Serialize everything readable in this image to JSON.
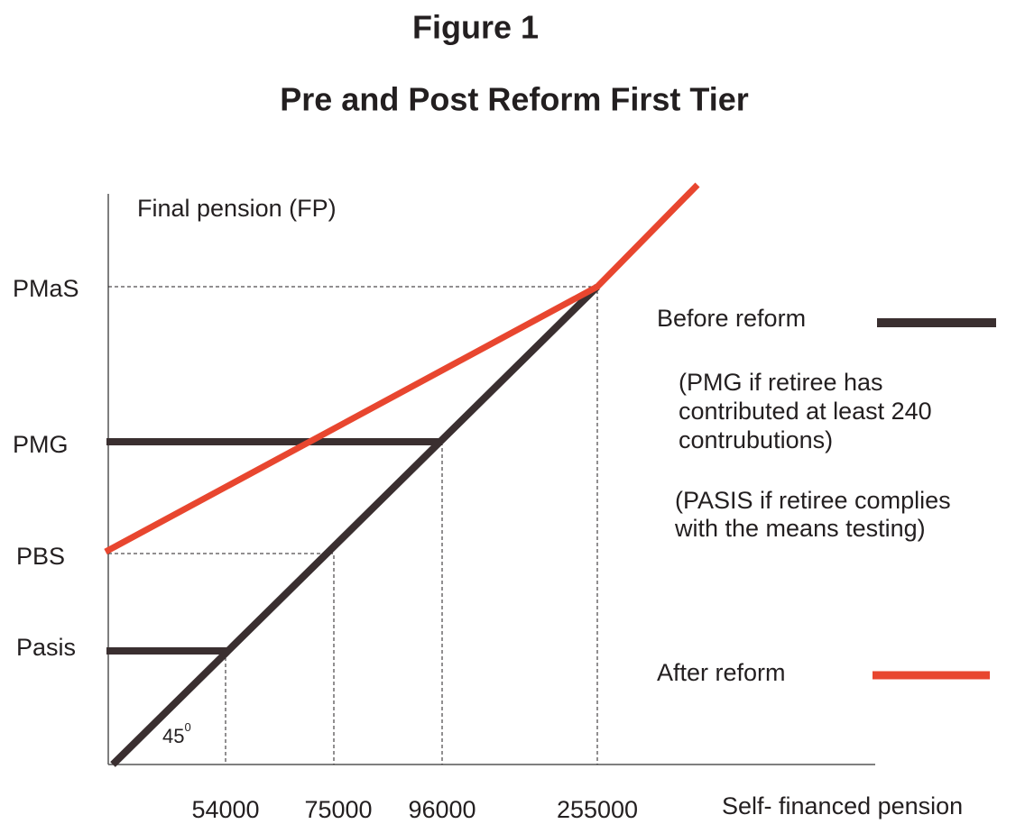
{
  "title": "Figure 1",
  "subtitle": "Pre and Post Reform First Tier",
  "y_axis_label": "Final pension (FP)",
  "x_axis_label": "Self- financed pension",
  "y_labels": [
    "PMaS",
    "PMG",
    "PBS",
    "Pasis"
  ],
  "x_labels": [
    "54000",
    "75000",
    "96000",
    "255000"
  ],
  "angle": {
    "value": "45",
    "superscript": "0"
  },
  "legend": {
    "before": {
      "label": "Before reform",
      "notes": [
        [
          "(PMG if retiree has",
          "contributed at least 240",
          "contrubutions)"
        ],
        [
          "(PASIS if retiree complies",
          "with the  means testing)"
        ]
      ]
    },
    "after": {
      "label": "After reform"
    }
  }
}
